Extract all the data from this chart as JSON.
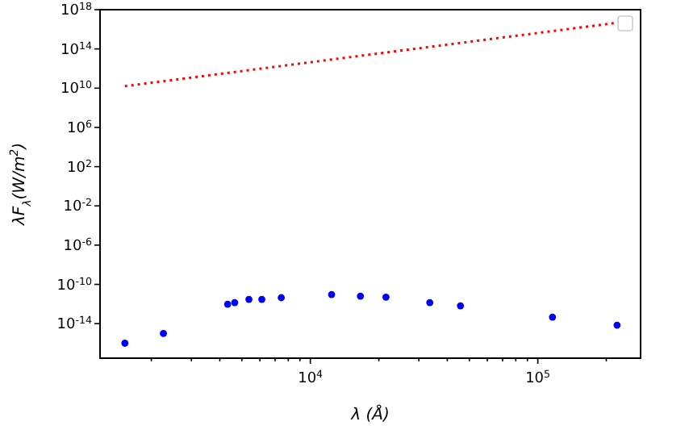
{
  "chart_data": {
    "type": "scatter",
    "xlabel": "λ (Å)",
    "ylabel": "λF$_{λ}$(W/m$^{2}$)",
    "log": "xy",
    "marker": "circle",
    "xlim": [
      1190,
      283000
    ],
    "ylim": [
      3e-18,
      1e+18
    ],
    "xticks": [
      {
        "value": 2000,
        "label": null
      },
      {
        "value": 3000,
        "label": null
      },
      {
        "value": 4000,
        "label": null
      },
      {
        "value": 5000,
        "label": null
      },
      {
        "value": 6000,
        "label": null
      },
      {
        "value": 7000,
        "label": null
      },
      {
        "value": 8000,
        "label": null
      },
      {
        "value": 9000,
        "label": null
      },
      {
        "value": 10000,
        "label": "10$^{4}$"
      },
      {
        "value": 20000,
        "label": null
      },
      {
        "value": 30000,
        "label": null
      },
      {
        "value": 40000,
        "label": null
      },
      {
        "value": 50000,
        "label": null
      },
      {
        "value": 60000,
        "label": null
      },
      {
        "value": 70000,
        "label": null
      },
      {
        "value": 80000,
        "label": null
      },
      {
        "value": 90000,
        "label": null
      },
      {
        "value": 100000,
        "label": "10$^{5}$"
      },
      {
        "value": 200000,
        "label": null
      }
    ],
    "yticks": [
      {
        "value": 1e-14,
        "label": "10$^{-14}$"
      },
      {
        "value": 1e-10,
        "label": "10$^{-10}$"
      },
      {
        "value": 1e-06,
        "label": "10$^{-6}$"
      },
      {
        "value": 0.01,
        "label": "10$^{-2}$"
      },
      {
        "value": 100,
        "label": "10$^{2}$"
      },
      {
        "value": 1000000.0,
        "label": "10$^{6}$"
      },
      {
        "value": 10000000000.0,
        "label": "10$^{10}$"
      },
      {
        "value": 100000000000000.0,
        "label": "10$^{14}$"
      },
      {
        "value": 1e+18,
        "label": "10$^{18}$"
      }
    ],
    "series": [
      {
        "color": "#0000ff",
        "x": [
          1530,
          2260,
          4330,
          4650,
          5370,
          6120,
          7450,
          12400,
          16600,
          21500,
          33500,
          45700,
          116000,
          223000
        ],
        "values": [
          1e-16,
          1e-15,
          9.5e-13,
          1.4e-12,
          3e-12,
          3e-12,
          4.4e-12,
          9.3e-12,
          6.3e-12,
          5e-12,
          1.4e-12,
          6.5e-13,
          4.6e-14,
          6.9e-15
        ]
      },
      {
        "type": "line",
        "color": "#ff0000",
        "line_style": "dotted",
        "marker": "none",
        "x": [
          1530,
          217000
        ],
        "values": [
          16000000000.0,
          4.3e+16
        ]
      }
    ]
  }
}
